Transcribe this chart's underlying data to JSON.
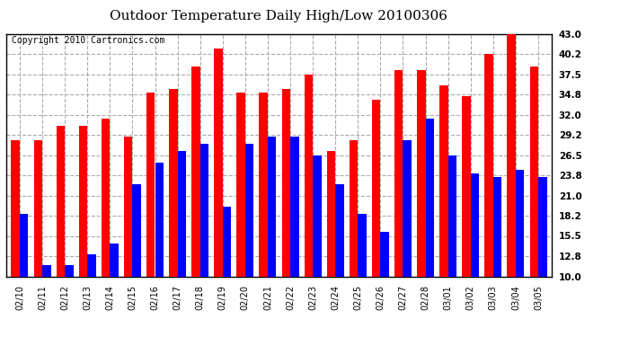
{
  "title": "Outdoor Temperature Daily High/Low 20100306",
  "copyright": "Copyright 2010 Cartronics.com",
  "categories": [
    "02/10",
    "02/11",
    "02/12",
    "02/13",
    "02/14",
    "02/15",
    "02/16",
    "02/17",
    "02/18",
    "02/19",
    "02/20",
    "02/21",
    "02/22",
    "02/23",
    "02/24",
    "02/25",
    "02/26",
    "02/27",
    "02/28",
    "03/01",
    "03/02",
    "03/03",
    "03/04",
    "03/05"
  ],
  "highs": [
    28.5,
    28.5,
    30.5,
    30.5,
    31.5,
    29.0,
    35.0,
    35.5,
    38.5,
    41.0,
    35.0,
    35.0,
    35.5,
    37.5,
    27.0,
    28.5,
    34.0,
    38.0,
    38.0,
    36.0,
    34.5,
    40.2,
    43.0,
    38.5
  ],
  "lows": [
    18.5,
    11.5,
    11.5,
    13.0,
    14.5,
    22.5,
    25.5,
    27.0,
    28.0,
    19.5,
    28.0,
    29.0,
    29.0,
    26.5,
    22.5,
    18.5,
    16.0,
    28.5,
    31.5,
    26.5,
    24.0,
    23.5,
    24.5,
    23.5
  ],
  "high_color": "#ff0000",
  "low_color": "#0000ff",
  "bg_color": "#ffffff",
  "grid_color": "#aaaaaa",
  "ylim": [
    10.0,
    43.0
  ],
  "yticks": [
    10.0,
    12.8,
    15.5,
    18.2,
    21.0,
    23.8,
    26.5,
    29.2,
    32.0,
    34.8,
    37.5,
    40.2,
    43.0
  ],
  "title_fontsize": 11,
  "copyright_fontsize": 7
}
